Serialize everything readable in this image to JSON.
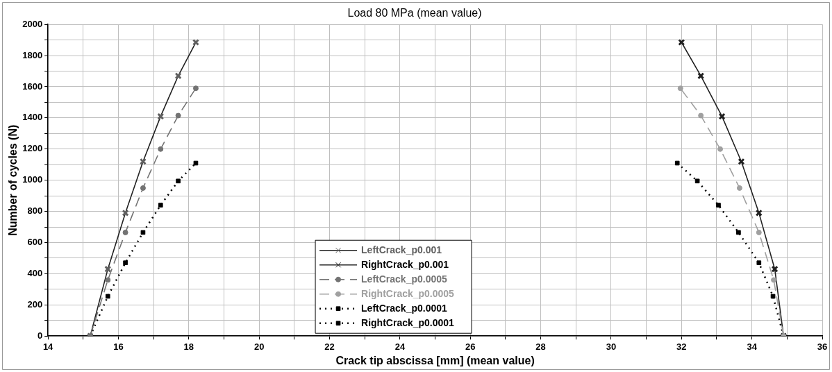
{
  "chart_data": {
    "type": "line",
    "title": "Load 80 MPa (mean value)",
    "xlabel": "Crack tip abscissa [mm] (mean value)",
    "ylabel": "Number of cycles (N)",
    "xlim": [
      14,
      36
    ],
    "ylim": [
      0,
      2000
    ],
    "xticks": [
      14,
      {
        "value": 15,
        "label": null
      },
      16,
      {
        "value": 17,
        "label": null
      },
      18,
      {
        "value": 19,
        "label": null
      },
      20,
      {
        "value": 21,
        "label": null
      },
      22,
      {
        "value": 23,
        "label": null
      },
      24,
      {
        "value": 25,
        "label": null
      },
      26,
      {
        "value": 27,
        "label": null
      },
      28,
      {
        "value": 29,
        "label": null
      },
      30,
      {
        "value": 31,
        "label": null
      },
      32,
      {
        "value": 33,
        "label": null
      },
      34,
      {
        "value": 35,
        "label": null
      },
      36
    ],
    "yticks": [
      0,
      {
        "value": 100,
        "label": null
      },
      200,
      {
        "value": 300,
        "label": null
      },
      400,
      {
        "value": 500,
        "label": null
      },
      600,
      {
        "value": 700,
        "label": null
      },
      800,
      {
        "value": 900,
        "label": null
      },
      1000,
      {
        "value": 1100,
        "label": null
      },
      1200,
      {
        "value": 1300,
        "label": null
      },
      1400,
      {
        "value": 1500,
        "label": null
      },
      1600,
      {
        "value": 1700,
        "label": null
      },
      1800,
      {
        "value": 1900,
        "label": null
      },
      2000
    ],
    "grid": true,
    "legend": "bottom",
    "series": [
      {
        "name": "LeftCrack_p0.001",
        "color": "#606060",
        "marker": "cross",
        "line_style": "solid",
        "x": [
          15.2,
          15.7,
          16.2,
          16.7,
          17.2,
          17.7,
          18.2
        ],
        "values": [
          0,
          430,
          790,
          1120,
          1410,
          1670,
          1885
        ]
      },
      {
        "name": "RightCrack_p0.001",
        "color": "#202020",
        "marker": "cross",
        "line_style": "solid",
        "x": [
          34.9,
          34.65,
          34.2,
          33.7,
          33.15,
          32.55,
          32.0
        ],
        "values": [
          0,
          430,
          790,
          1120,
          1410,
          1670,
          1885
        ]
      },
      {
        "name": "LeftCrack_p0.0005",
        "color": "#737373",
        "marker": "circle",
        "line_style": "dashed",
        "x": [
          15.2,
          15.7,
          16.2,
          16.7,
          17.2,
          17.7,
          18.2
        ],
        "values": [
          0,
          360,
          665,
          950,
          1200,
          1415,
          1590
        ]
      },
      {
        "name": "RightCrack_p0.0005",
        "color": "#a0a0a0",
        "marker": "circle",
        "line_style": "dashed",
        "x": [
          34.9,
          34.62,
          34.2,
          33.65,
          33.1,
          32.55,
          31.97
        ],
        "values": [
          0,
          360,
          665,
          950,
          1200,
          1415,
          1590
        ]
      },
      {
        "name": "LeftCrack_p0.0001",
        "color": "#000000",
        "marker": "square",
        "line_style": "dotted",
        "x": [
          15.2,
          15.7,
          16.2,
          16.7,
          17.2,
          17.7,
          18.2
        ],
        "values": [
          0,
          255,
          470,
          665,
          840,
          995,
          1110
        ]
      },
      {
        "name": "RightCrack_p0.0001",
        "color": "#000000",
        "marker": "square",
        "line_style": "dotted",
        "x": [
          34.9,
          34.6,
          34.2,
          33.62,
          33.05,
          32.45,
          31.88
        ],
        "values": [
          0,
          255,
          470,
          665,
          840,
          995,
          1110
        ]
      }
    ]
  }
}
